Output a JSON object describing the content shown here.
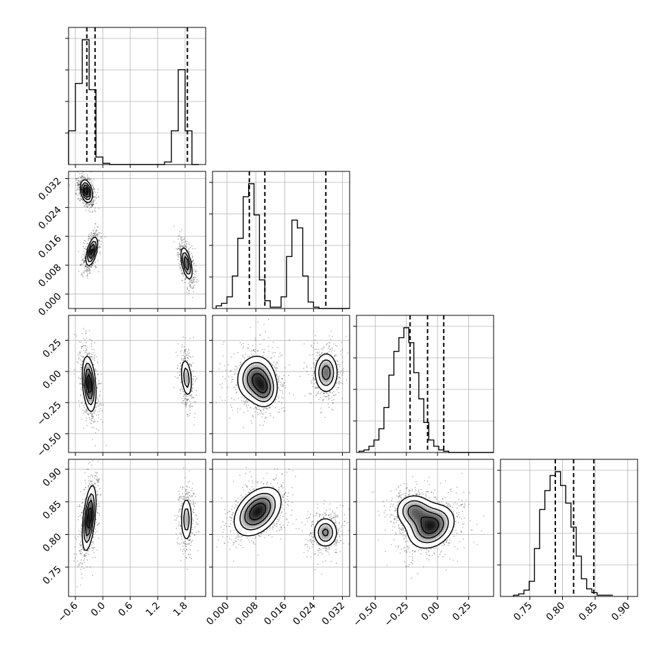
{
  "chart_data": {
    "type": "corner",
    "title": "",
    "params": [
      {
        "range": [
          -0.75,
          2.25
        ],
        "ticks": [
          -0.6,
          0.0,
          0.6,
          1.2,
          1.8
        ],
        "tick_labels": [
          "−0.6",
          "0.0",
          "0.6",
          "1.2",
          "1.8"
        ],
        "quantiles": [
          -0.35,
          -0.17,
          1.85
        ],
        "hist": {
          "edges_start": -0.75,
          "bin_width": 0.15,
          "heights": [
            0.27,
            0.65,
            1.0,
            0.6,
            0.06,
            0.01,
            0,
            0,
            0,
            0,
            0,
            0,
            0,
            0,
            0.02,
            0.27,
            0.76,
            0.27,
            0
          ]
        }
      },
      {
        "range": [
          -0.004,
          0.034
        ],
        "ticks": [
          0.0,
          0.008,
          0.016,
          0.024,
          0.032
        ],
        "tick_labels": [
          "0.000",
          "0.008",
          "0.016",
          "0.024",
          "0.032"
        ],
        "quantiles": [
          0.0062,
          0.0105,
          0.0274
        ],
        "hist": {
          "edges_start": -0.003,
          "bin_width": 0.0015,
          "heights": [
            0.02,
            0.04,
            0.09,
            0.25,
            0.54,
            0.86,
            0.96,
            0.72,
            0.22,
            0.06,
            0.01,
            0.01,
            0.09,
            0.4,
            0.68,
            0.62,
            0.25,
            0.05,
            0.01,
            0,
            0,
            0,
            0,
            0,
            0
          ]
        }
      },
      {
        "range": [
          -0.65,
          0.45
        ],
        "ticks": [
          -0.5,
          -0.25,
          0.0,
          0.25
        ],
        "tick_labels": [
          "−0.50",
          "−0.25",
          "0.00",
          "0.25"
        ],
        "quantiles": [
          -0.22,
          -0.08,
          0.05
        ],
        "hist": {
          "edges_start": -0.63,
          "bin_width": 0.04,
          "heights": [
            0.01,
            0.02,
            0.05,
            0.1,
            0.19,
            0.36,
            0.62,
            0.81,
            0.92,
            1.0,
            0.88,
            0.64,
            0.43,
            0.24,
            0.1,
            0.05,
            0.02,
            0.01,
            0,
            0,
            0,
            0,
            0,
            0,
            0,
            0,
            0
          ]
        }
      },
      {
        "range": [
          0.705,
          0.915
        ],
        "ticks": [
          0.75,
          0.8,
          0.85,
          0.9
        ],
        "tick_labels": [
          "0.75",
          "0.80",
          "0.85",
          "0.90"
        ],
        "quantiles": [
          0.789,
          0.817,
          0.848
        ],
        "hist": {
          "edges_start": 0.725,
          "bin_width": 0.008,
          "heights": [
            0.01,
            0.02,
            0.05,
            0.12,
            0.38,
            0.69,
            0.84,
            0.96,
            0.99,
            0.88,
            0.74,
            0.55,
            0.32,
            0.14,
            0.06,
            0.03,
            0.01,
            0.01,
            0.01
          ]
        }
      }
    ],
    "pairs": [
      {
        "row": 1,
        "col": 0,
        "blobs": [
          {
            "cx": -0.36,
            "cy": 0.0285,
            "sx": 0.07,
            "sy": 0.0017,
            "rho": -0.3,
            "w": 1.0
          },
          {
            "cx": -0.24,
            "cy": 0.0118,
            "sx": 0.07,
            "sy": 0.0022,
            "rho": 0.55,
            "w": 0.9
          },
          {
            "cx": 1.83,
            "cy": 0.0085,
            "sx": 0.07,
            "sy": 0.0025,
            "rho": -0.55,
            "w": 0.8
          }
        ]
      },
      {
        "row": 2,
        "col": 0,
        "blobs": [
          {
            "cx": -0.3,
            "cy": -0.1,
            "sx": 0.08,
            "sy": 0.12,
            "rho": -0.3,
            "w": 1.0
          },
          {
            "cx": 1.83,
            "cy": -0.05,
            "sx": 0.07,
            "sy": 0.09,
            "rho": -0.3,
            "w": 0.55
          }
        ]
      },
      {
        "row": 2,
        "col": 1,
        "blobs": [
          {
            "cx": 0.0078,
            "cy": -0.05,
            "sx": 0.0028,
            "sy": 0.1,
            "rho": 0.1,
            "w": 0.7
          },
          {
            "cx": 0.0105,
            "cy": -0.15,
            "sx": 0.002,
            "sy": 0.08,
            "rho": 0.0,
            "w": 0.55
          },
          {
            "cx": 0.0275,
            "cy": -0.01,
            "sx": 0.0018,
            "sy": 0.09,
            "rho": 0.0,
            "w": 0.65
          }
        ]
      },
      {
        "row": 3,
        "col": 0,
        "blobs": [
          {
            "cx": -0.3,
            "cy": 0.825,
            "sx": 0.08,
            "sy": 0.027,
            "rho": 0.5,
            "w": 1.0
          },
          {
            "cx": 1.83,
            "cy": 0.823,
            "sx": 0.07,
            "sy": 0.02,
            "rho": 0.0,
            "w": 0.55
          }
        ]
      },
      {
        "row": 3,
        "col": 1,
        "blobs": [
          {
            "cx": 0.0085,
            "cy": 0.835,
            "sx": 0.0035,
            "sy": 0.02,
            "rho": 0.4,
            "w": 1.0
          },
          {
            "cx": 0.0273,
            "cy": 0.803,
            "sx": 0.0019,
            "sy": 0.013,
            "rho": 0.0,
            "w": 0.65
          }
        ]
      },
      {
        "row": 3,
        "col": 2,
        "blobs": [
          {
            "cx": -0.05,
            "cy": 0.812,
            "sx": 0.1,
            "sy": 0.018,
            "rho": 0.25,
            "w": 1.0
          },
          {
            "cx": -0.19,
            "cy": 0.836,
            "sx": 0.08,
            "sy": 0.014,
            "rho": 0.0,
            "w": 0.7
          }
        ]
      }
    ],
    "grid": true,
    "xlabel": "",
    "ylabel": ""
  }
}
